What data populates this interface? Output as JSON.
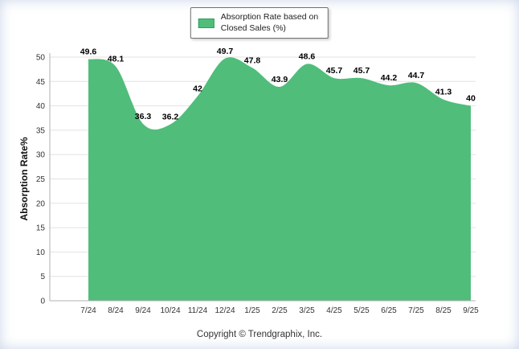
{
  "legend": {
    "label_line1": "Absorption Rate based on",
    "label_line2": "Closed Sales (%)",
    "swatch_color": "#50BD7B"
  },
  "chart_data": {
    "type": "area",
    "title": "",
    "xlabel": "",
    "ylabel": "Absorption Rate%",
    "series_name": "Absorption Rate based on Closed Sales (%)",
    "categories": [
      "7/24",
      "8/24",
      "9/24",
      "10/24",
      "11/24",
      "12/24",
      "1/25",
      "2/25",
      "3/25",
      "4/25",
      "5/25",
      "6/25",
      "7/25",
      "8/25",
      "9/25"
    ],
    "values": [
      49.6,
      48.1,
      36.3,
      36.2,
      42,
      49.7,
      47.8,
      43.9,
      48.6,
      45.7,
      45.7,
      44.2,
      44.7,
      41.3,
      40
    ],
    "ylim": [
      0,
      50
    ],
    "yticks": [
      0,
      5,
      10,
      15,
      20,
      25,
      30,
      35,
      40,
      45,
      50
    ],
    "grid": true,
    "legend_position": "top",
    "area_color": "#50BD7B",
    "gridline_color": "#e2e2e2",
    "axis_color": "#b0b0b0",
    "data_label_color": "#000000"
  },
  "footer": {
    "copyright": "Copyright © Trendgraphix, Inc."
  }
}
